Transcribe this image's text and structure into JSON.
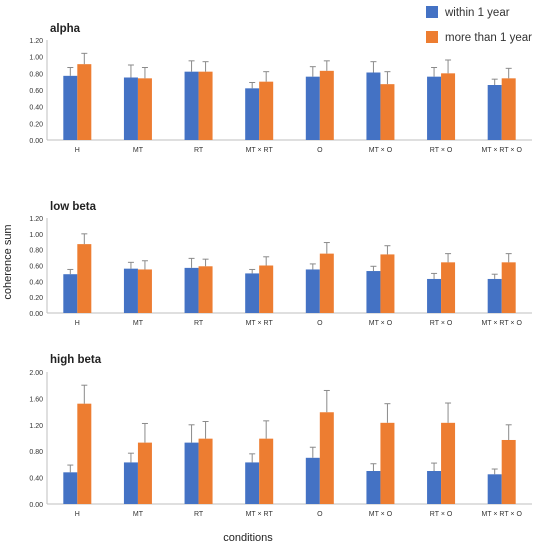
{
  "legend": {
    "items": [
      {
        "label": "within 1 year",
        "color": "#4472C4"
      },
      {
        "label": "more than 1 year",
        "color": "#ED7D31"
      }
    ]
  },
  "ylabel": "coherence sum",
  "xlabel": "conditions",
  "chart_data": [
    {
      "type": "bar",
      "title": "alpha",
      "categories": [
        "H",
        "MT",
        "RT",
        "MT × RT",
        "O",
        "MT × O",
        "RT × O",
        "MT × RT × O"
      ],
      "ylim": [
        0,
        1.2
      ],
      "yticks": [
        "0.00",
        "0.20",
        "0.40",
        "0.60",
        "0.80",
        "1.00",
        "1.20"
      ],
      "grid": false,
      "error_bars": true,
      "series": [
        {
          "name": "within 1 year",
          "color": "#4472C4",
          "values": [
            0.77,
            0.75,
            0.82,
            0.62,
            0.76,
            0.81,
            0.76,
            0.66
          ],
          "errors": [
            0.1,
            0.15,
            0.13,
            0.07,
            0.12,
            0.13,
            0.11,
            0.07
          ]
        },
        {
          "name": "more than 1 year",
          "color": "#ED7D31",
          "values": [
            0.91,
            0.74,
            0.82,
            0.7,
            0.83,
            0.67,
            0.8,
            0.74
          ],
          "errors": [
            0.13,
            0.13,
            0.12,
            0.12,
            0.12,
            0.15,
            0.16,
            0.12
          ]
        }
      ]
    },
    {
      "type": "bar",
      "title": "low beta",
      "categories": [
        "H",
        "MT",
        "RT",
        "MT × RT",
        "O",
        "MT × O",
        "RT × O",
        "MT × RT × O"
      ],
      "ylim": [
        0,
        1.2
      ],
      "yticks": [
        "0.00",
        "0.20",
        "0.40",
        "0.60",
        "0.80",
        "1.00",
        "1.20"
      ],
      "grid": false,
      "error_bars": true,
      "series": [
        {
          "name": "within 1 year",
          "color": "#4472C4",
          "values": [
            0.49,
            0.56,
            0.57,
            0.5,
            0.55,
            0.53,
            0.43,
            0.43
          ],
          "errors": [
            0.06,
            0.08,
            0.12,
            0.05,
            0.07,
            0.06,
            0.07,
            0.06
          ]
        },
        {
          "name": "more than 1 year",
          "color": "#ED7D31",
          "values": [
            0.87,
            0.55,
            0.59,
            0.6,
            0.75,
            0.74,
            0.64,
            0.64
          ],
          "errors": [
            0.13,
            0.11,
            0.09,
            0.11,
            0.14,
            0.11,
            0.11,
            0.11
          ]
        }
      ]
    },
    {
      "type": "bar",
      "title": "high beta",
      "categories": [
        "H",
        "MT",
        "RT",
        "MT × RT",
        "O",
        "MT × O",
        "RT × O",
        "MT × RT × O"
      ],
      "ylim": [
        0,
        2.0
      ],
      "yticks": [
        "0.00",
        "0.40",
        "0.80",
        "1.20",
        "1.60",
        "2.00"
      ],
      "grid": false,
      "error_bars": true,
      "series": [
        {
          "name": "within 1 year",
          "color": "#4472C4",
          "values": [
            0.48,
            0.63,
            0.93,
            0.63,
            0.7,
            0.5,
            0.5,
            0.45
          ],
          "errors": [
            0.11,
            0.14,
            0.27,
            0.13,
            0.16,
            0.11,
            0.12,
            0.08
          ]
        },
        {
          "name": "more than 1 year",
          "color": "#ED7D31",
          "values": [
            1.52,
            0.93,
            0.99,
            0.99,
            1.39,
            1.23,
            1.23,
            0.97
          ],
          "errors": [
            0.28,
            0.29,
            0.26,
            0.27,
            0.33,
            0.29,
            0.3,
            0.23
          ]
        }
      ]
    }
  ]
}
